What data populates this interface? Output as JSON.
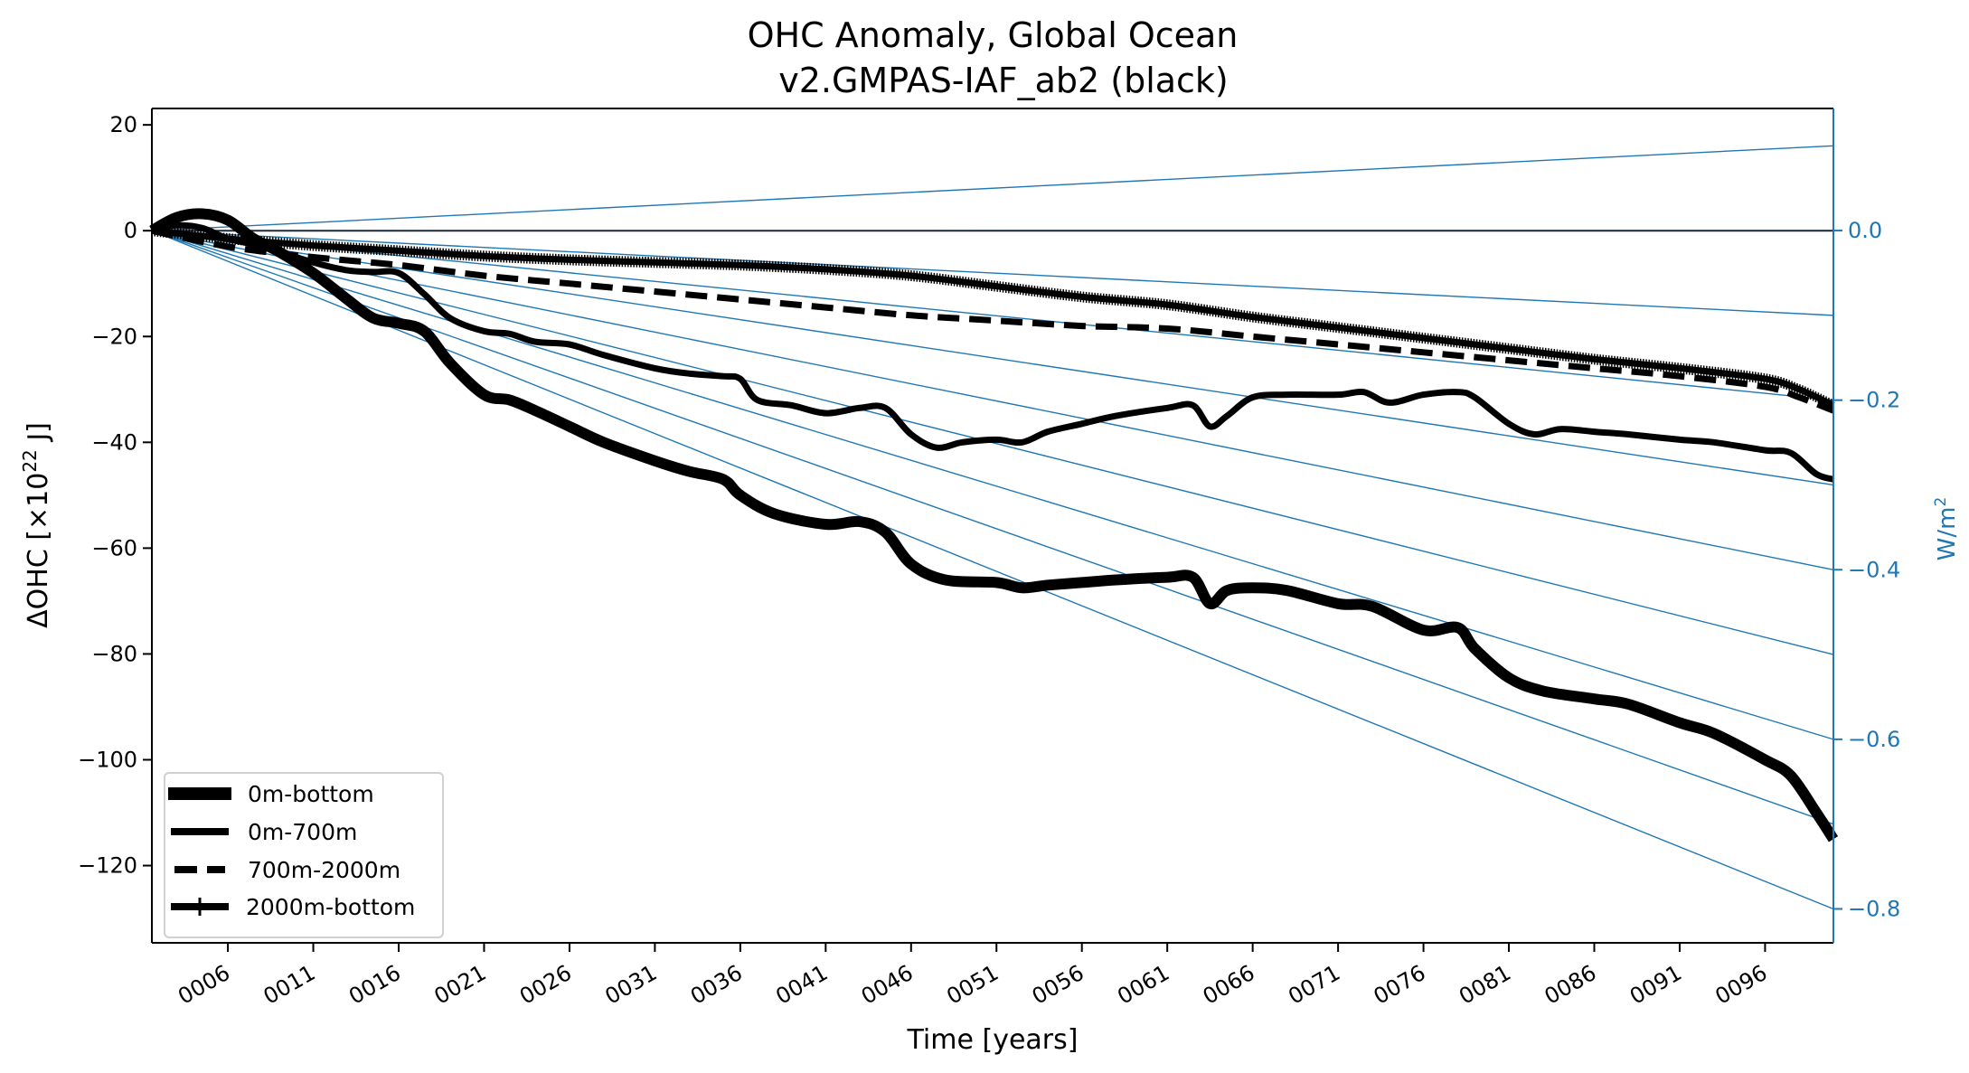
{
  "chart_data": {
    "type": "line",
    "title": "OHC Anomaly, Global Ocean",
    "subtitle": "v2.GMPAS-IAF_ab2 (black)",
    "xlabel": "Time [years]",
    "ylabel": "ΔOHC [×10²² J]",
    "ylabel_parts": {
      "prefix": "ΔOHC [×10",
      "sup": "22",
      "suffix": " J]"
    },
    "y2label": "W/m²",
    "y2label_parts": {
      "prefix": "W/m",
      "sup": "2"
    },
    "xlim": [
      1.55,
      100.0
    ],
    "ylim": [
      -134.6,
      23.1
    ],
    "y2lim": [
      -0.84,
      0.144
    ],
    "x_ticks": [
      6,
      11,
      16,
      21,
      26,
      31,
      36,
      41,
      46,
      51,
      56,
      61,
      66,
      71,
      76,
      81,
      86,
      91,
      96
    ],
    "x_tick_labels": [
      "0006",
      "0011",
      "0016",
      "0021",
      "0026",
      "0031",
      "0036",
      "0041",
      "0046",
      "0051",
      "0056",
      "0061",
      "0066",
      "0071",
      "0076",
      "0081",
      "0086",
      "0091",
      "0096"
    ],
    "y_ticks": [
      20,
      0,
      -20,
      -40,
      -60,
      -80,
      -100,
      -120
    ],
    "y_tick_labels": [
      "20",
      "0",
      "−20",
      "−40",
      "−60",
      "−80",
      "−100",
      "−120"
    ],
    "y2_ticks": [
      0.0,
      -0.2,
      -0.4,
      -0.6,
      -0.8
    ],
    "y2_tick_labels": [
      "0.0",
      "−0.2",
      "−0.4",
      "−0.6",
      "−0.8"
    ],
    "grid": false,
    "legend_position": "lower-left",
    "reference_lines": {
      "description": "Reference OHC trends for constant heat flux (W/m²), from origin to end of record",
      "origin": [
        1.55,
        0
      ],
      "flux_values": [
        0.1,
        0.0,
        -0.1,
        -0.2,
        -0.3,
        -0.4,
        -0.5,
        -0.6,
        -0.7,
        -0.8
      ],
      "color": "#1f77b4"
    },
    "series": [
      {
        "name": "0m-bottom",
        "style": "thick-solid",
        "x": [
          1.55,
          3,
          4.5,
          6,
          7.5,
          9,
          11,
          13,
          14.5,
          16,
          17.5,
          19,
          21,
          22.5,
          24,
          26,
          28,
          31,
          33,
          35,
          36,
          38,
          41,
          43,
          44.5,
          46,
          48,
          51,
          52.5,
          54,
          56,
          58,
          61,
          62.5,
          63.5,
          64.5,
          66,
          68,
          71,
          73,
          76,
          78,
          79,
          81,
          83,
          86,
          88,
          91,
          93,
          96,
          97.5,
          99,
          100
        ],
        "y": [
          0,
          2.5,
          3.2,
          2,
          -1.5,
          -4,
          -8,
          -13,
          -16.5,
          -17.5,
          -19,
          -25,
          -31,
          -32,
          -34,
          -37,
          -40,
          -43.5,
          -45.5,
          -47,
          -50,
          -53.5,
          -55.5,
          -55,
          -57,
          -63,
          -66,
          -66.5,
          -67.5,
          -67,
          -66.5,
          -66,
          -65.5,
          -65.5,
          -70.5,
          -68,
          -67.5,
          -68,
          -70.5,
          -71,
          -75.5,
          -75,
          -79,
          -84.5,
          -87,
          -88.5,
          -89.5,
          -93,
          -95,
          -100,
          -103,
          -110,
          -115
        ]
      },
      {
        "name": "0m-700m",
        "style": "solid",
        "x": [
          1.55,
          3,
          4.5,
          6,
          8,
          11,
          13,
          14.5,
          16,
          17.5,
          19,
          21,
          22.5,
          24,
          26,
          28,
          31,
          33,
          35,
          36,
          37,
          39,
          41,
          43,
          44.5,
          46,
          47.5,
          49,
          51,
          52.5,
          54,
          56,
          58,
          61,
          62.5,
          63.5,
          64.5,
          66,
          68,
          71,
          72.5,
          74,
          76,
          78,
          79,
          81,
          82.5,
          84,
          86,
          88,
          91,
          93,
          96,
          97.5,
          99,
          100
        ],
        "y": [
          0,
          1,
          0.5,
          -1.5,
          -3,
          -6,
          -7.5,
          -7.8,
          -8,
          -12,
          -16.5,
          -19,
          -19.5,
          -21,
          -21.5,
          -23.5,
          -26,
          -27,
          -27.5,
          -28,
          -32,
          -33,
          -34.5,
          -33.5,
          -33.5,
          -38.5,
          -41,
          -40,
          -39.5,
          -40,
          -38,
          -36.5,
          -35,
          -33.5,
          -33,
          -37,
          -35,
          -31.5,
          -31,
          -31,
          -30.5,
          -32.5,
          -31,
          -30.5,
          -31.5,
          -36.5,
          -38.5,
          -37.5,
          -38,
          -38.5,
          -39.5,
          -40,
          -41.5,
          -42,
          -46,
          -47
        ]
      },
      {
        "name": "700m-2000m",
        "style": "dashed",
        "x": [
          1.55,
          6,
          11,
          16,
          21,
          26,
          31,
          36,
          41,
          46,
          51,
          56,
          61,
          66,
          71,
          76,
          81,
          86,
          91,
          96,
          98,
          100
        ],
        "y": [
          0,
          -3,
          -5,
          -6.5,
          -8.5,
          -10,
          -11.5,
          -13,
          -14.5,
          -16,
          -17,
          -18,
          -18.5,
          -20,
          -21.5,
          -23,
          -24.5,
          -26,
          -27.5,
          -29.5,
          -31.5,
          -34
        ]
      },
      {
        "name": "2000m-bottom",
        "style": "solid-plus-markers",
        "x": [
          1.55,
          6,
          11,
          16,
          21,
          26,
          31,
          36,
          41,
          46,
          51,
          56,
          61,
          66,
          71,
          76,
          81,
          86,
          91,
          96,
          98,
          100
        ],
        "y": [
          0,
          -1.5,
          -2.8,
          -3.8,
          -4.8,
          -5.5,
          -6,
          -6.5,
          -7.3,
          -8.5,
          -10.5,
          -12.5,
          -14,
          -16.3,
          -18.3,
          -20.3,
          -22.3,
          -24.3,
          -26,
          -28,
          -30,
          -33
        ]
      }
    ]
  },
  "legend": {
    "items": [
      {
        "label": "0m-bottom"
      },
      {
        "label": "0m-700m"
      },
      {
        "label": "700m-2000m"
      },
      {
        "label": "2000m-bottom"
      }
    ]
  },
  "colors": {
    "series": "#000000",
    "secondary_axis": "#1f77b4"
  }
}
